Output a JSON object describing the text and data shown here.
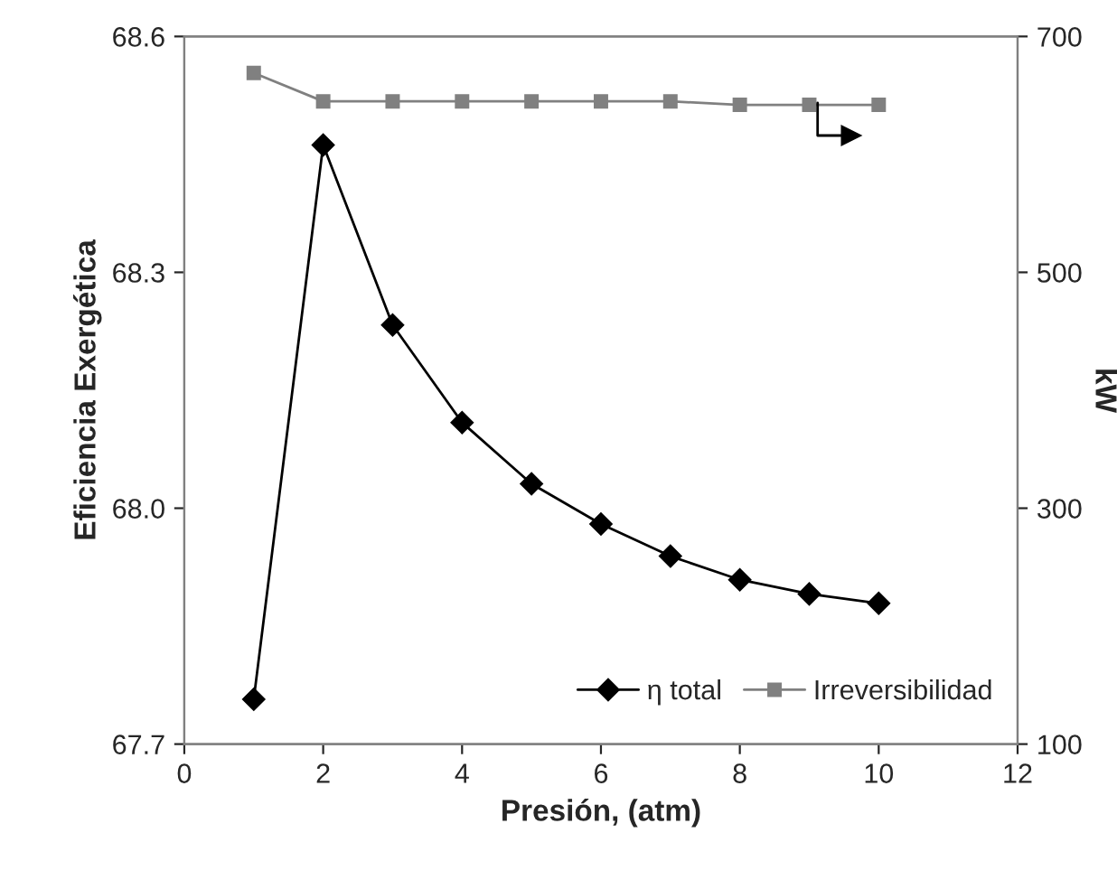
{
  "chart_data": {
    "type": "line",
    "xlabel": "Presión, (atm)",
    "ylabel": "Eficiencia Exergética",
    "y2label": "kW",
    "x": [
      1,
      2,
      3,
      4,
      5,
      6,
      7,
      8,
      9,
      10
    ],
    "series": [
      {
        "name": "η total",
        "color": "#000000",
        "marker": "diamond",
        "values": [
          67.757,
          68.462,
          68.233,
          68.109,
          68.031,
          67.98,
          67.939,
          67.909,
          67.891,
          67.879
        ]
      },
      {
        "name": "Irreversibilidad",
        "color": "#808080",
        "marker": "square",
        "axis": "y2",
        "values": [
          669,
          645,
          645,
          645,
          645,
          645,
          645,
          642,
          642,
          642
        ]
      }
    ],
    "xlim": [
      0,
      12
    ],
    "xticks": [
      0,
      2,
      4,
      6,
      8,
      10,
      12
    ],
    "ylim": [
      67.7,
      68.6
    ],
    "yticks": [
      67.7,
      68.3,
      {
        "value": 68,
        "label": "68.0"
      },
      68.6
    ],
    "y2lim": [
      100,
      700
    ],
    "y2ticks": [
      100,
      300,
      500,
      700
    ],
    "grid": false,
    "legend": "bottom right",
    "line_style": "solid"
  }
}
